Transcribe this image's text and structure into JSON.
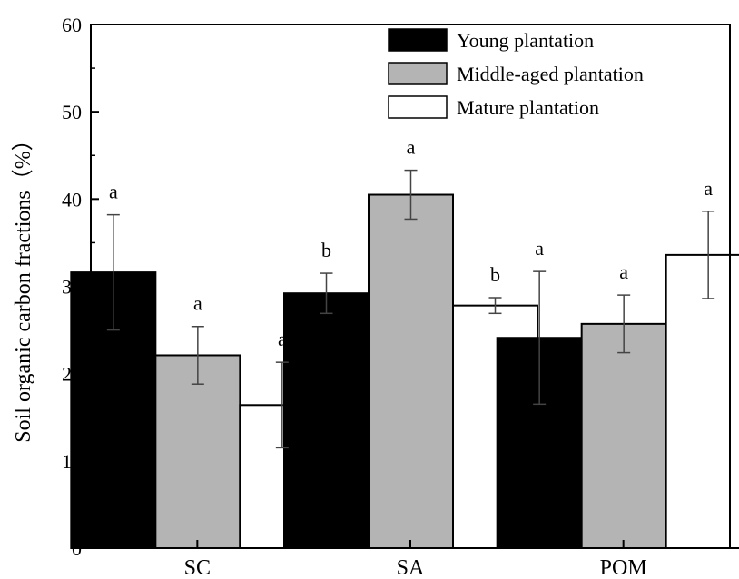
{
  "chart_data": {
    "type": "bar",
    "title": "",
    "xlabel": "",
    "ylabel": "Soil organic carbon fractions（%）",
    "ylim": [
      0,
      60
    ],
    "yticks": [
      "0",
      "10",
      "20",
      "30",
      "40",
      "50",
      "60"
    ],
    "categories": [
      "SC",
      "SA",
      "POM"
    ],
    "legend_position": "top-right",
    "grid": false,
    "series": [
      {
        "name": "Young plantation",
        "color": "#000000",
        "values": [
          31.6,
          29.2,
          24.1
        ],
        "errors": [
          6.6,
          2.3,
          7.6
        ],
        "letters": [
          "a",
          "b",
          "a"
        ]
      },
      {
        "name": "Middle-aged plantation",
        "color": "#b4b4b4",
        "values": [
          22.1,
          40.5,
          25.7
        ],
        "errors": [
          3.3,
          2.8,
          3.3
        ],
        "letters": [
          "a",
          "a",
          "a"
        ]
      },
      {
        "name": "Mature plantation",
        "color": "#ffffff",
        "values": [
          16.4,
          27.8,
          33.6
        ],
        "errors": [
          4.9,
          0.9,
          5.0
        ],
        "letters": [
          "a",
          "b",
          "a"
        ]
      }
    ]
  }
}
